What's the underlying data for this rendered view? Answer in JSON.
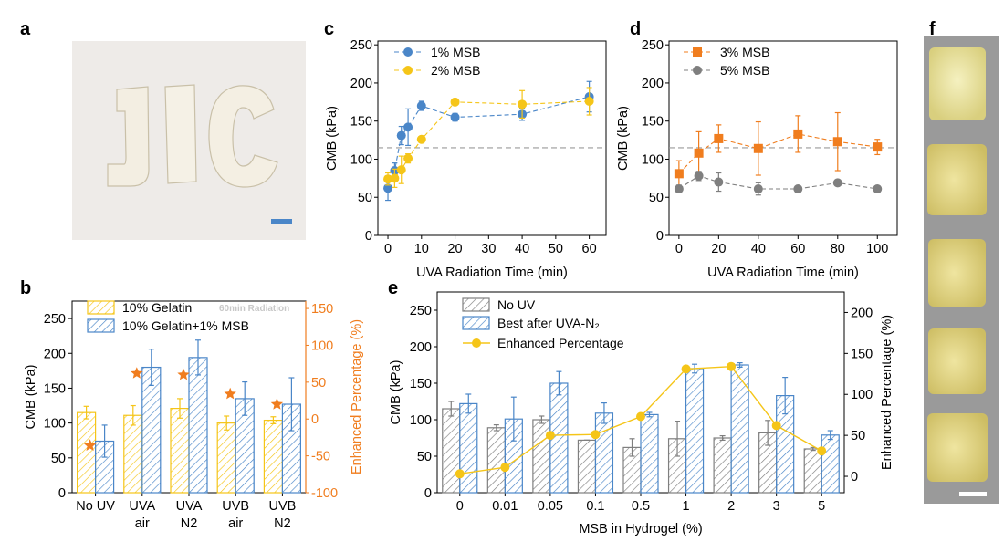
{
  "panels": {
    "a": {
      "letter": "a"
    },
    "b": {
      "letter": "b"
    },
    "c": {
      "letter": "c"
    },
    "d": {
      "letter": "d"
    },
    "e": {
      "letter": "e"
    },
    "f": {
      "letter": "f"
    }
  },
  "colors": {
    "blue": "#4a86c8",
    "yellow": "#f5c518",
    "orange": "#f07d1e",
    "gray": "#7f7f7f",
    "dashed_ref": "#9a9a9a"
  },
  "chart_data": [
    {
      "panel": "b",
      "type": "bar",
      "categories": [
        [
          "No UV"
        ],
        [
          "UVA",
          "air"
        ],
        [
          "UVA",
          "N2"
        ],
        [
          "UVB",
          "air"
        ],
        [
          "UVB",
          "N2"
        ]
      ],
      "ylabel": "CMB (kPa)",
      "y2label": "Enhanced Percentage (%)",
      "ylim": [
        0,
        275
      ],
      "yticks": [
        0,
        50,
        100,
        150,
        200,
        250
      ],
      "y2lim": [
        -100,
        160
      ],
      "y2ticks": [
        -100,
        -50,
        0,
        50,
        100,
        150
      ],
      "annotation": "60min Radiation",
      "series": [
        {
          "name": "10% Gelatin",
          "values": [
            115,
            111,
            121,
            100,
            104
          ],
          "errors": [
            9,
            14,
            14,
            10,
            5
          ]
        },
        {
          "name": "10% Gelatin+1% MSB",
          "values": [
            74,
            180,
            194,
            135,
            127
          ],
          "errors": [
            23,
            26,
            25,
            24,
            38
          ]
        }
      ],
      "enhanced_percentage": [
        -36,
        62,
        60,
        34,
        20
      ]
    },
    {
      "panel": "c",
      "type": "scatter",
      "xlabel": "UVA Radiation Time (min)",
      "ylabel": "CMB (kPa)",
      "xlim": [
        -3,
        65
      ],
      "xticks": [
        0,
        10,
        20,
        30,
        40,
        50,
        60
      ],
      "ylim": [
        0,
        255
      ],
      "yticks": [
        0,
        50,
        100,
        150,
        200,
        250
      ],
      "reference_line": 115,
      "series": [
        {
          "name": "1% MSB",
          "x": [
            0,
            2,
            4,
            6,
            10,
            20,
            40,
            60
          ],
          "y": [
            62,
            85,
            131,
            142,
            170,
            155,
            159,
            182
          ],
          "errors": [
            16,
            10,
            12,
            24,
            6,
            5,
            8,
            20
          ]
        },
        {
          "name": "2% MSB",
          "x": [
            0,
            2,
            4,
            6,
            10,
            20,
            40,
            60
          ],
          "y": [
            74,
            75,
            86,
            101,
            126,
            175,
            172,
            176
          ],
          "errors": [
            8,
            12,
            18,
            6,
            3,
            3,
            18,
            18
          ]
        }
      ]
    },
    {
      "panel": "d",
      "type": "scatter",
      "xlabel": "UVA Radiation Time (min)",
      "ylabel": "CMB (kPa)",
      "xlim": [
        -5,
        110
      ],
      "xticks": [
        0,
        20,
        40,
        60,
        80,
        100
      ],
      "ylim": [
        0,
        255
      ],
      "yticks": [
        0,
        50,
        100,
        150,
        200,
        250
      ],
      "reference_line": 115,
      "series": [
        {
          "name": "3% MSB",
          "x": [
            0,
            10,
            20,
            40,
            60,
            80,
            100
          ],
          "y": [
            81,
            108,
            127,
            114,
            133,
            123,
            116
          ],
          "errors": [
            17,
            28,
            18,
            35,
            24,
            38,
            10
          ]
        },
        {
          "name": "5% MSB",
          "x": [
            0,
            10,
            20,
            40,
            60,
            80,
            100
          ],
          "y": [
            61,
            78,
            70,
            61,
            61,
            69,
            61
          ],
          "errors": [
            5,
            6,
            12,
            8,
            3,
            4,
            4
          ]
        }
      ]
    },
    {
      "panel": "e",
      "type": "bar",
      "categories": [
        "0",
        "0.01",
        "0.05",
        "0.1",
        "0.5",
        "1",
        "2",
        "3",
        "5"
      ],
      "xlabel": "MSB in Hydrogel (%)",
      "ylabel": "CMB (kPa)",
      "y2label": "Enhanced Percentage (%)",
      "ylim": [
        0,
        275
      ],
      "yticks": [
        0,
        50,
        100,
        150,
        200,
        250
      ],
      "y2lim": [
        -20,
        225
      ],
      "y2ticks": [
        0,
        50,
        100,
        150,
        200
      ],
      "series": [
        {
          "name": "No UV",
          "values": [
            115,
            89,
            100,
            72,
            62,
            74,
            75,
            82,
            60
          ],
          "errors": [
            10,
            4,
            5,
            0,
            12,
            24,
            3,
            17,
            2
          ]
        },
        {
          "name": "Best after UVA-N₂",
          "values": [
            122,
            101,
            150,
            109,
            107,
            170,
            175,
            133,
            79
          ],
          "errors": [
            13,
            30,
            16,
            14,
            3,
            6,
            3,
            25,
            6
          ]
        }
      ],
      "enhanced_percentage": {
        "name": "Enhanced Percentage",
        "values": [
          3,
          11,
          50,
          51,
          73,
          131,
          134,
          62,
          31
        ]
      }
    }
  ]
}
